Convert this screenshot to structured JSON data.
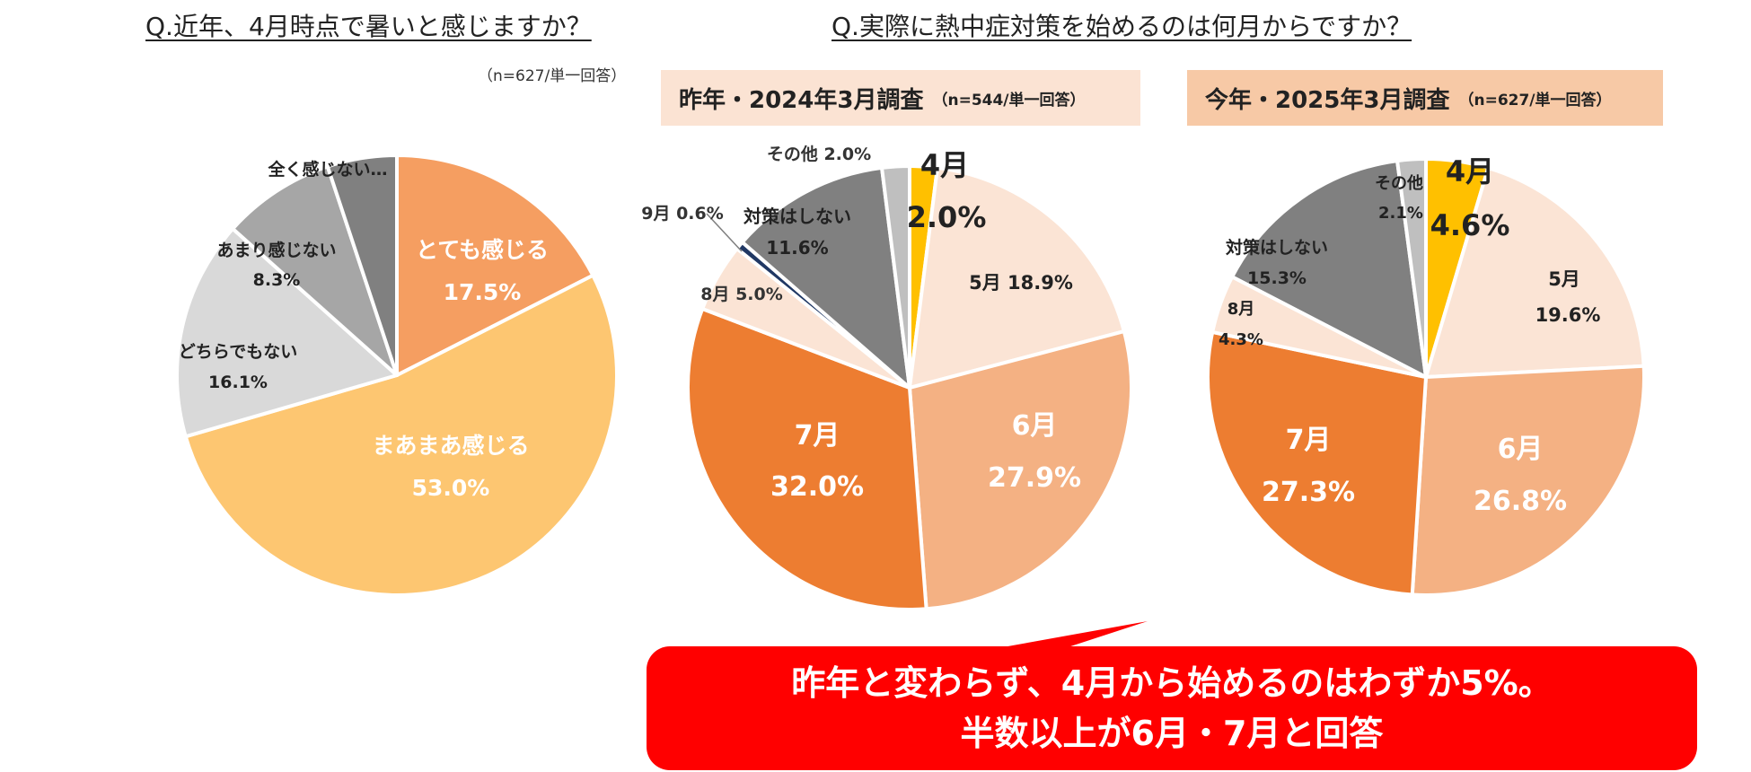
{
  "q1": {
    "title": "Q.近年、4月時点で暑いと感じますか？",
    "note": "（n=627/単一回答）"
  },
  "q2": {
    "title": "Q.実際に熱中症対策を始めるのは何月からですか？",
    "header_2024": {
      "main": "昨年・2024年3月調査",
      "sub": "（n=544/単一回答）"
    },
    "header_2025": {
      "main": "今年・2025年3月調査",
      "sub": "（n=627/単一回答）"
    }
  },
  "callout": {
    "line1": "昨年と変わらず、4月から始めるのはわずか5%。",
    "line2": "半数以上が6月・7月と回答"
  },
  "chart_data": [
    {
      "type": "pie",
      "title": "Q.近年、4月時点で暑いと感じますか？",
      "slices": [
        {
          "name": "とても感じる",
          "value": 17.5,
          "pct": "17.5%",
          "color": "#f59e61"
        },
        {
          "name": "まあまあ感じる",
          "value": 53.0,
          "pct": "53.0%",
          "color": "#fdc671"
        },
        {
          "name": "どちらでもない",
          "value": 16.1,
          "pct": "16.1%",
          "color": "#d9d9d9"
        },
        {
          "name": "あまり感じない",
          "value": 8.3,
          "pct": "8.3%",
          "color": "#a6a6a6"
        },
        {
          "name": "全く感じない…",
          "value": 5.1,
          "pct": "",
          "color": "#808080"
        }
      ]
    },
    {
      "type": "pie",
      "title": "昨年・2024年3月調査",
      "slices": [
        {
          "name": "4月",
          "value": 2.0,
          "pct": "2.0%",
          "color": "#ffc000"
        },
        {
          "name": "5月",
          "value": 18.9,
          "pct": "18.9%",
          "color": "#fbe4d5"
        },
        {
          "name": "6月",
          "value": 27.9,
          "pct": "27.9%",
          "color": "#f4b183"
        },
        {
          "name": "7月",
          "value": 32.0,
          "pct": "32.0%",
          "color": "#ed7d31"
        },
        {
          "name": "8月",
          "value": 5.0,
          "pct": "5.0%",
          "color": "#fbe4d5"
        },
        {
          "name": "9月",
          "value": 0.6,
          "pct": "0.6%",
          "color": "#203864"
        },
        {
          "name": "対策はしない",
          "value": 11.6,
          "pct": "11.6%",
          "color": "#808080"
        },
        {
          "name": "その他",
          "value": 2.0,
          "pct": "2.0%",
          "color": "#bfbfbf"
        }
      ]
    },
    {
      "type": "pie",
      "title": "今年・2025年3月調査",
      "slices": [
        {
          "name": "4月",
          "value": 4.6,
          "pct": "4.6%",
          "color": "#ffc000"
        },
        {
          "name": "5月",
          "value": 19.6,
          "pct": "19.6%",
          "color": "#fbe4d5"
        },
        {
          "name": "6月",
          "value": 26.8,
          "pct": "26.8%",
          "color": "#f4b183"
        },
        {
          "name": "7月",
          "value": 27.3,
          "pct": "27.3%",
          "color": "#ed7d31"
        },
        {
          "name": "8月",
          "value": 4.3,
          "pct": "4.3%",
          "color": "#fbe4d5"
        },
        {
          "name": "対策はしない",
          "value": 15.3,
          "pct": "15.3%",
          "color": "#808080"
        },
        {
          "name": "その他",
          "value": 2.1,
          "pct": "2.1%",
          "color": "#bfbfbf"
        }
      ]
    }
  ]
}
